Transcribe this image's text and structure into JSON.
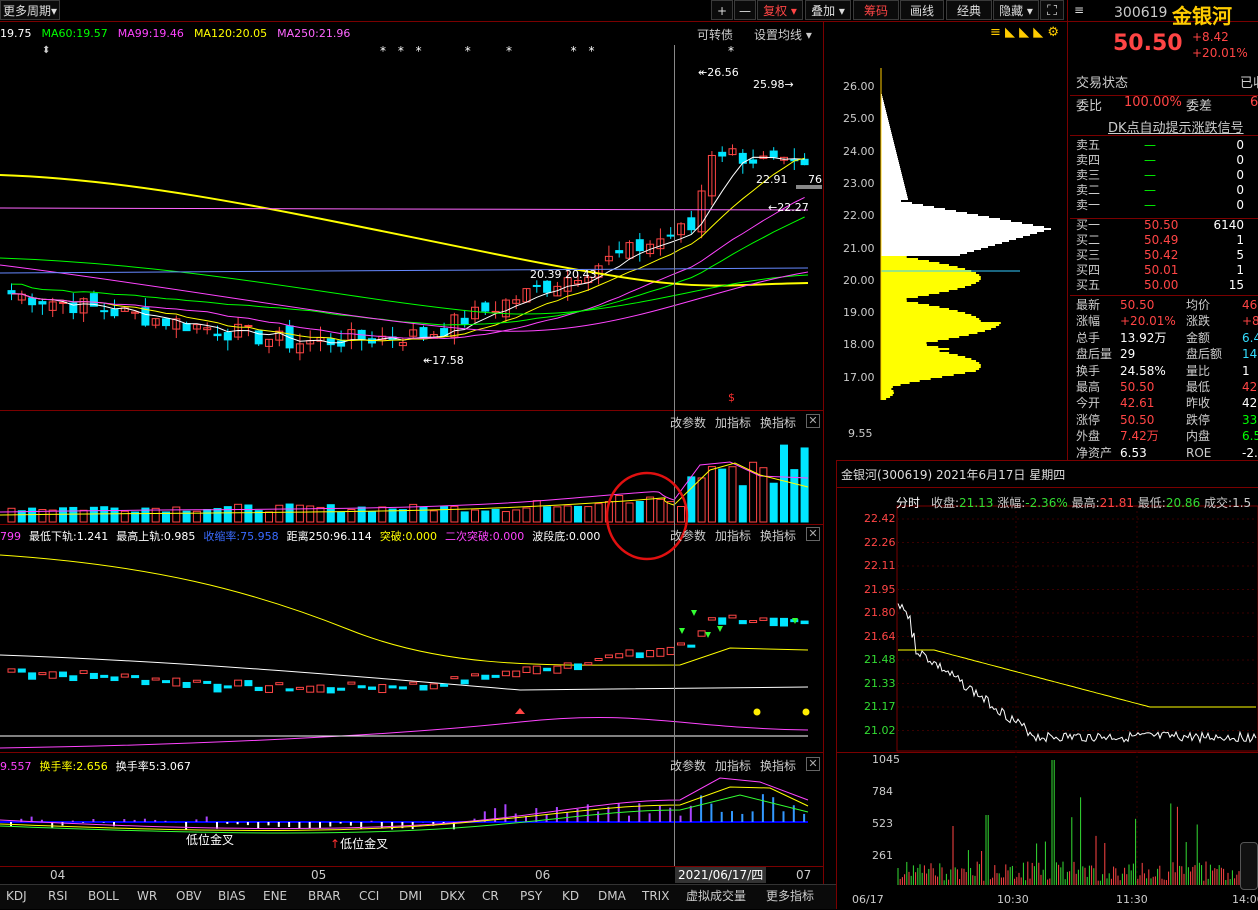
{
  "toolbar": {
    "period": "更多周期",
    "period_arrow": "▾",
    "plus": "+",
    "minus": "—",
    "fuquan": "复权",
    "diejia": "叠加",
    "choumа": "筹码",
    "huaxian": "画线",
    "jingdian": "经典",
    "yincang": "隐藏",
    "expand_icon": "expand-icon"
  },
  "ma_legend": [
    {
      "text": "19.75",
      "color": "#ffffff"
    },
    {
      "text": "MA60:19.57",
      "color": "#00ff00"
    },
    {
      "text": "MA99:19.46",
      "color": "#ff44ff"
    },
    {
      "text": "MA120:20.05",
      "color": "#ffff00"
    },
    {
      "text": "MA250:21.96",
      "color": "#ff66ff"
    }
  ],
  "main_menu": {
    "convertible": "可转债",
    "ma_settings": "设置均线"
  },
  "price_axis": [
    "26.00",
    "25.00",
    "24.00",
    "23.00",
    "22.00",
    "21.00",
    "20.00",
    "19.00",
    "18.00",
    "17.00"
  ],
  "price_annotations": {
    "high": "26.56",
    "high2": "25.98",
    "low": "17.58",
    "mid1": "22.27",
    "right_val": "76",
    "left_marks": "20.39 20.43",
    "mid2": "22.91"
  },
  "panel_menu": {
    "change_params": "改参数",
    "add_indicator": "加指标",
    "change_indicator": "换指标"
  },
  "vol_axis_top": "9.55",
  "boll_legend": [
    {
      "text": "799",
      "color": "#ff44ff"
    },
    {
      "text": "最低下轨:1.241",
      "color": "#ffffff"
    },
    {
      "text": "最高上轨:0.985",
      "color": "#ffffff"
    },
    {
      "text": "收缩率:75.958",
      "color": "#3a6bff"
    },
    {
      "text": "距离250:96.114",
      "color": "#ffffff"
    },
    {
      "text": "突破:0.000",
      "color": "#ffff00"
    },
    {
      "text": "二次突破:0.000",
      "color": "#ff44ff"
    },
    {
      "text": "波段底:0.000",
      "color": "#ffffff"
    }
  ],
  "turnover_legend": [
    {
      "text": "9.557",
      "color": "#ff44ff"
    },
    {
      "text": "换手率:2.656",
      "color": "#ffff00"
    },
    {
      "text": "换手率5:3.067",
      "color": "#ffffff"
    }
  ],
  "annotations": {
    "golden_cross1": "低位金叉",
    "golden_cross2": "低位金叉"
  },
  "time_axis": {
    "m04": "04",
    "m05": "05",
    "m06": "06",
    "date": "2021/06/17/四",
    "m07": "07"
  },
  "bottom_tabs": [
    "KDJ",
    "RSI",
    "BOLL",
    "WR",
    "OBV",
    "BIAS",
    "ENE",
    "BRAR",
    "CCI",
    "DMI",
    "DKX",
    "CR",
    "PSY",
    "KD",
    "DMA",
    "TRIX",
    "虚拟成交量",
    "更多指标"
  ],
  "stock": {
    "code": "300619",
    "name": "金银河",
    "price": "50.50",
    "change": "+8.42",
    "change_pct": "+20.01%"
  },
  "trade_status": {
    "label": "交易状态",
    "value": "已收"
  },
  "weibi": {
    "label": "委比",
    "value": "100.00%",
    "label2": "委差",
    "value2": "6"
  },
  "dk_signal": "DK点自动提示涨跌信号",
  "sell_orders": [
    {
      "label": "卖五",
      "price": "—",
      "vol": "0"
    },
    {
      "label": "卖四",
      "price": "—",
      "vol": "0"
    },
    {
      "label": "卖三",
      "price": "—",
      "vol": "0"
    },
    {
      "label": "卖二",
      "price": "—",
      "vol": "0"
    },
    {
      "label": "卖一",
      "price": "—",
      "vol": "0"
    }
  ],
  "buy_orders": [
    {
      "label": "买一",
      "price": "50.50",
      "vol": "6140"
    },
    {
      "label": "买二",
      "price": "50.49",
      "vol": "1"
    },
    {
      "label": "买三",
      "price": "50.42",
      "vol": "5"
    },
    {
      "label": "买四",
      "price": "50.01",
      "vol": "1"
    },
    {
      "label": "买五",
      "price": "50.00",
      "vol": "15"
    }
  ],
  "stats": [
    {
      "l1": "最新",
      "v1": "50.50",
      "c1": "#ff4545",
      "l2": "均价",
      "v2": "46",
      "c2": "#ff4545"
    },
    {
      "l1": "涨幅",
      "v1": "+20.01%",
      "c1": "#ff4545",
      "l2": "涨跌",
      "v2": "+8",
      "c2": "#ff4545"
    },
    {
      "l1": "总手",
      "v1": "13.92万",
      "c1": "#ffffff",
      "l2": "金额",
      "v2": "6.4",
      "c2": "#33ddff"
    },
    {
      "l1": "盘后量",
      "v1": "29",
      "c1": "#ffffff",
      "l2": "盘后额",
      "v2": "14",
      "c2": "#33ddff"
    },
    {
      "l1": "换手",
      "v1": "24.58%",
      "c1": "#ffffff",
      "l2": "量比",
      "v2": "1",
      "c2": "#ffffff"
    },
    {
      "l1": "最高",
      "v1": "50.50",
      "c1": "#ff4545",
      "l2": "最低",
      "v2": "42",
      "c2": "#ff4545"
    },
    {
      "l1": "今开",
      "v1": "42.61",
      "c1": "#ff4545",
      "l2": "昨收",
      "v2": "42",
      "c2": "#ffffff"
    },
    {
      "l1": "涨停",
      "v1": "50.50",
      "c1": "#ff4545",
      "l2": "跌停",
      "v2": "33",
      "c2": "#00ff00"
    },
    {
      "l1": "外盘",
      "v1": "7.42万",
      "c1": "#ff4545",
      "l2": "内盘",
      "v2": "6.5",
      "c2": "#00ff00"
    },
    {
      "l1": "净资产",
      "v1": "6.53",
      "c1": "#ffffff",
      "l2": "ROE",
      "v2": "-2.8",
      "c2": "#ffffff"
    }
  ],
  "intraday": {
    "title": "金银河(300619) 2021年6月17日 星期四",
    "tab": "分时",
    "close_label": "收盘:",
    "close_value": "21.13",
    "change_label": "涨幅:",
    "change_value": "-2.36%",
    "high_label": "最高:",
    "high_value": "21.81",
    "low_label": "最低:",
    "low_value": "20.86",
    "vol_label": "成交:",
    "vol_value": "1.5",
    "price_axis": [
      "22.42",
      "22.26",
      "22.11",
      "21.95",
      "21.80",
      "21.64",
      "21.48",
      "21.33",
      "21.17",
      "21.02"
    ],
    "vol_axis": [
      "1045",
      "784",
      "523",
      "261"
    ],
    "time_axis": [
      "06/17",
      "10:30",
      "11:30",
      "14:00"
    ]
  },
  "chart_data": [
    {
      "type": "candlestick",
      "title": "",
      "y_range": [
        16.5,
        26.8
      ],
      "x_labels": [
        "04",
        "05",
        "06",
        "07"
      ],
      "marked_values": {
        "high": 26.56,
        "low": 17.58,
        "last_close": 22.27
      }
    },
    {
      "type": "line",
      "title": "金银河(300619) 2021年6月17日 星期四",
      "y_range": [
        21.02,
        22.42
      ],
      "x": [
        "06/17",
        "10:30",
        "11:30",
        "14:00"
      ],
      "series": [
        {
          "name": "",
          "close": 21.13,
          "high": 21.81,
          "low": 20.86
        }
      ]
    }
  ]
}
